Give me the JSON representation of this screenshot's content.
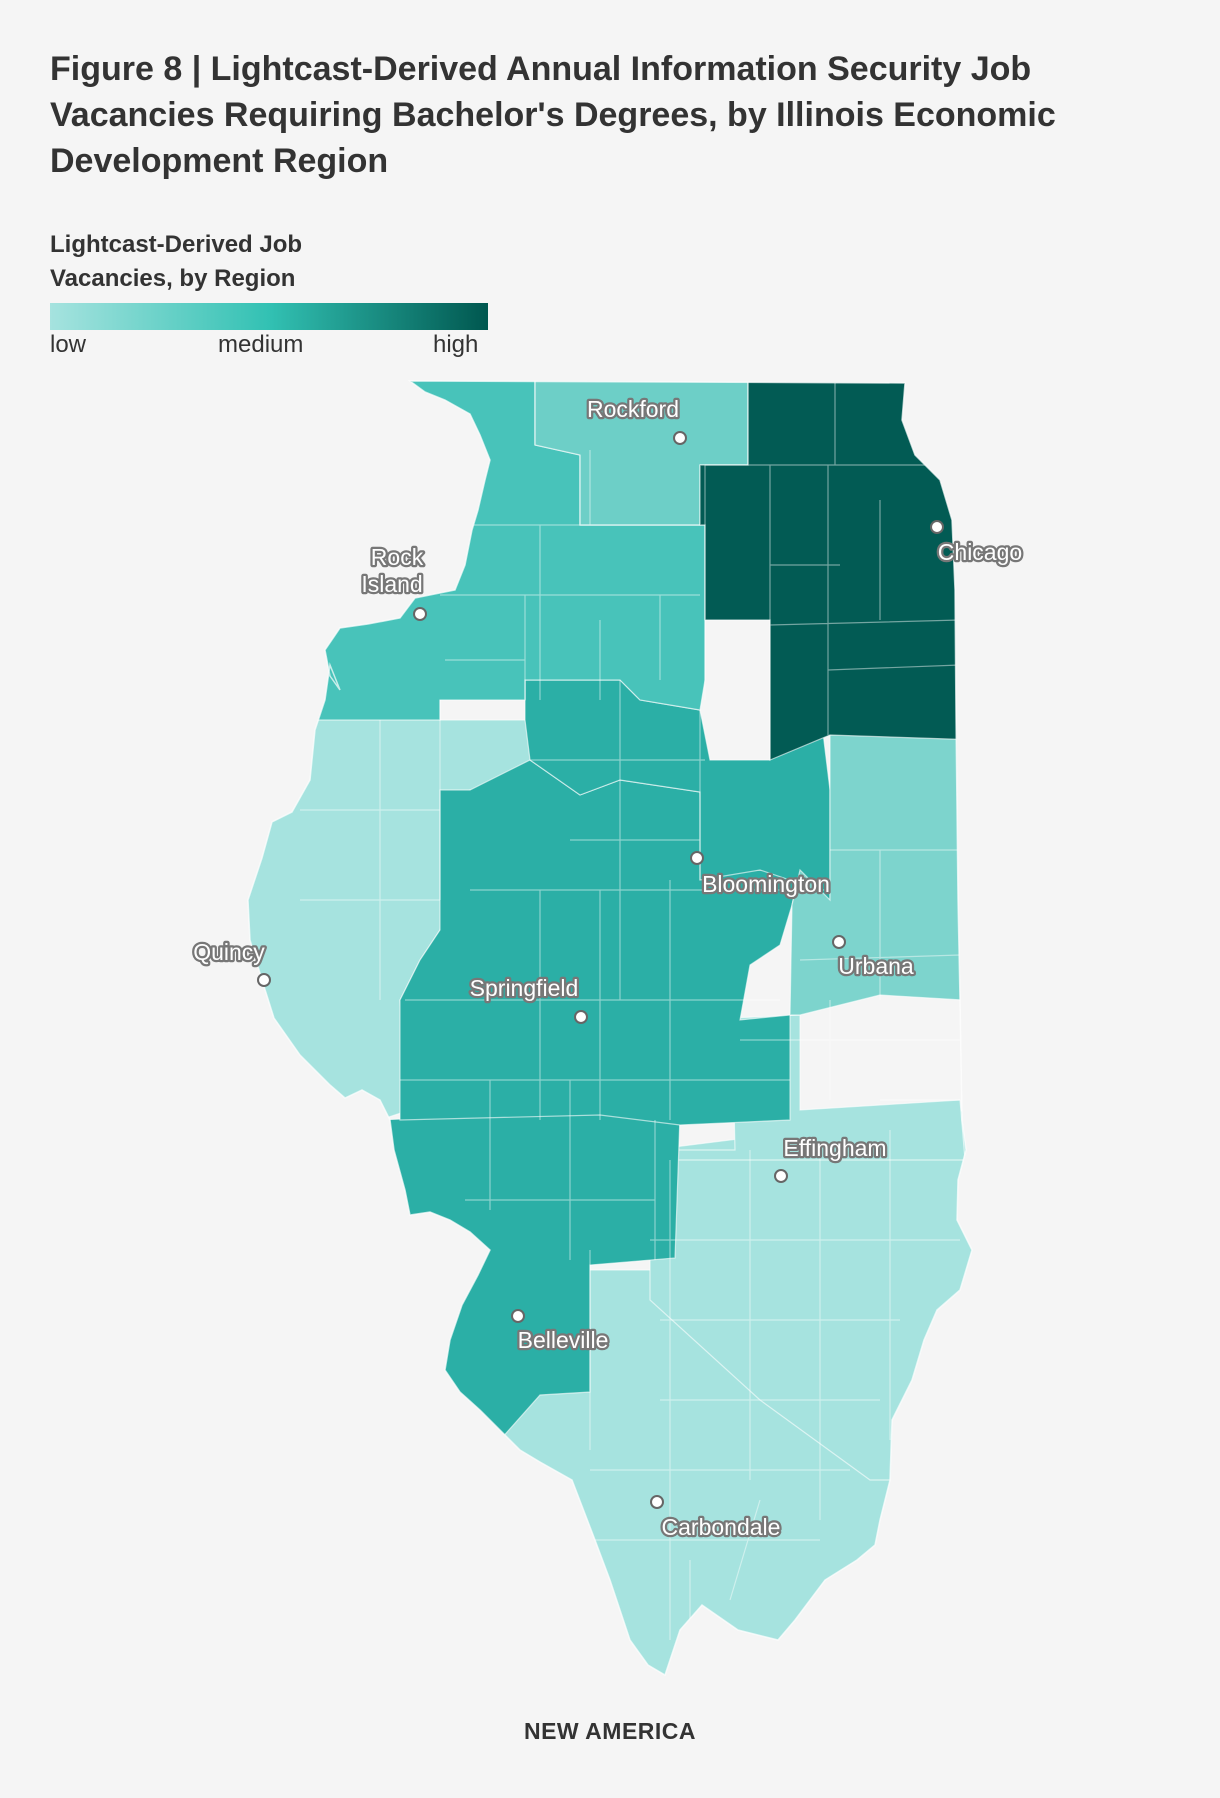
{
  "title": "Figure 8 | Lightcast-Derived Annual Information Security Job Vacancies Requiring Bachelor's Degrees, by Illinois Economic Development Region",
  "legend": {
    "title": "Lightcast-Derived Job Vacancies, by Region",
    "low": "low",
    "medium": "medium",
    "high": "high",
    "colors": [
      "#a6e3df",
      "#32c1b3",
      "#00574f"
    ]
  },
  "region_colors": {
    "northeast": "#025b54",
    "northern_stateline": "#6dcfc7",
    "northwest": "#48c3ba",
    "north_central": "#2bafa6",
    "east_central": "#7dd4cd",
    "west_central": "#a6e3df",
    "central": "#2bafa6",
    "southwest": "#2bafa6",
    "southeastern": "#a6e3df",
    "southern": "#a6e3df"
  },
  "cities": [
    {
      "name": "Rockford"
    },
    {
      "name": "Chicago"
    },
    {
      "name": "Rock Island",
      "lines": [
        "Rock",
        "Island"
      ]
    },
    {
      "name": "Bloomington"
    },
    {
      "name": "Quincy"
    },
    {
      "name": "Urbana"
    },
    {
      "name": "Springfield"
    },
    {
      "name": "Effingham"
    },
    {
      "name": "Belleville"
    },
    {
      "name": "Carbondale"
    }
  ],
  "footer": "NEW AMERICA"
}
